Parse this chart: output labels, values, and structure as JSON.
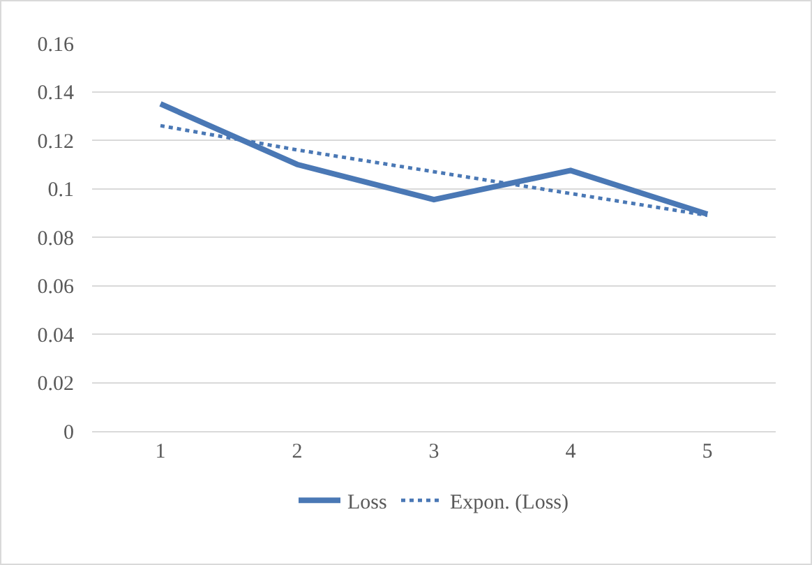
{
  "chart_data": {
    "type": "line",
    "categories": [
      "1",
      "2",
      "3",
      "4",
      "5"
    ],
    "series": [
      {
        "name": "Loss",
        "color": "#4a78b5",
        "values": [
          0.135,
          0.11,
          0.0955,
          0.1075,
          0.0895
        ],
        "line_style": "solid"
      },
      {
        "name": "Expon. (Loss)",
        "color": "#4a78b5",
        "values": [
          0.126,
          0.116,
          0.107,
          0.098,
          0.089
        ],
        "line_style": "dotted"
      }
    ],
    "ylim": [
      0,
      0.16
    ],
    "yticks": [
      0,
      0.02,
      0.04,
      0.06,
      0.08,
      0.1,
      0.12,
      0.14,
      0.16
    ],
    "grid": "y",
    "legend": "bottom",
    "marker": "none"
  }
}
